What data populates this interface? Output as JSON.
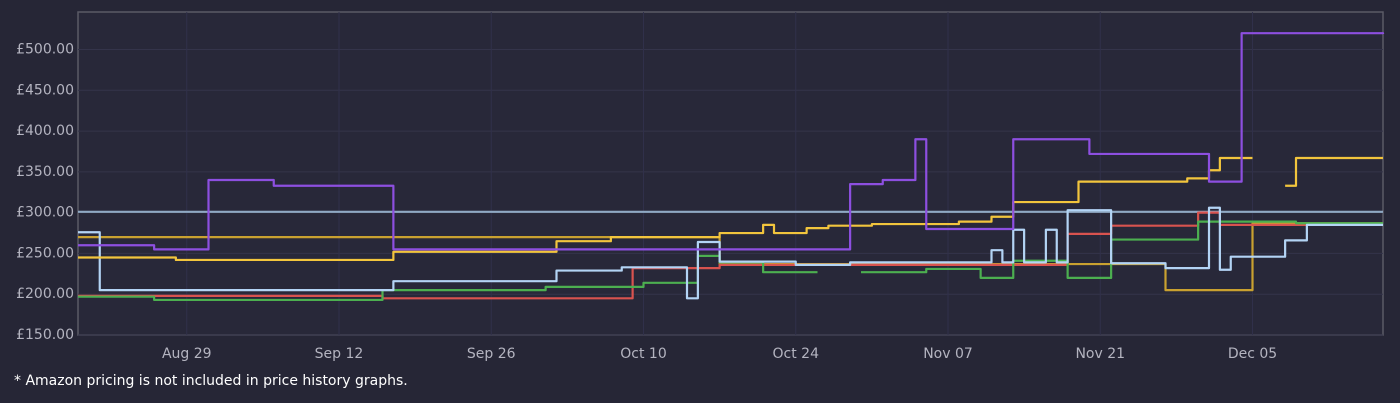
{
  "chart_data": {
    "type": "step",
    "footnote": "* Amazon pricing is not included in price history graphs.",
    "xlim": [
      "Aug 19",
      "Dec 17"
    ],
    "xticks": [
      "Aug 29",
      "Sep 12",
      "Sep 26",
      "Oct 10",
      "Oct 24",
      "Nov 07",
      "Nov 21",
      "Dec 05"
    ],
    "ylim": [
      150,
      546
    ],
    "yticks": [
      {
        "value": 150,
        "label": "£150.00"
      },
      {
        "value": 200,
        "label": "£200.00"
      },
      {
        "value": 250,
        "label": "£250.00"
      },
      {
        "value": 300,
        "label": "£300.00"
      },
      {
        "value": 350,
        "label": "£350.00"
      },
      {
        "value": 400,
        "label": "£400.00"
      },
      {
        "value": 450,
        "label": "£450.00"
      },
      {
        "value": 500,
        "label": "£500.00"
      }
    ],
    "grid": true,
    "series": [
      {
        "color": "#8fa9c4",
        "x": [
          "Aug 19",
          "Dec 17"
        ],
        "values": [
          301,
          301
        ]
      },
      {
        "color": "#c9a130",
        "x": [
          "Aug 19",
          "Oct 17",
          "Nov 27",
          "Dec 05",
          "Dec 17"
        ],
        "values": [
          270,
          237,
          205,
          287,
          287
        ]
      },
      {
        "color": "#d9534f",
        "x": [
          "Aug 19",
          "Sep 16",
          "Oct 09",
          "Oct 17",
          "Nov 18",
          "Nov 22",
          "Nov 30",
          "Dec 02",
          "Dec 17"
        ],
        "values": [
          198,
          195,
          232,
          236,
          274,
          284,
          300,
          285,
          285
        ]
      },
      {
        "color": "#4caf50",
        "x": [
          "Aug 19",
          "Aug 26",
          "Sep 16",
          "Oct 01",
          "Oct 10",
          "Oct 15",
          "Oct 17",
          "Oct 21",
          "Oct 26",
          "Oct 30",
          "Nov 05",
          "Nov 10",
          "Nov 13",
          "Nov 18",
          "Nov 22",
          "Nov 30",
          "Dec 09",
          "Dec 17"
        ],
        "values": [
          197,
          193,
          205,
          209,
          214,
          247,
          239,
          227,
          null,
          227,
          231,
          220,
          241,
          220,
          267,
          289,
          287,
          287
        ]
      },
      {
        "color": "#b3d4f5",
        "x": [
          "Aug 19",
          "Aug 21",
          "Sep 17",
          "Oct 02",
          "Oct 08",
          "Oct 14",
          "Oct 15",
          "Oct 17",
          "Oct 24",
          "Oct 29",
          "Nov 11",
          "Nov 12",
          "Nov 13",
          "Nov 14",
          "Nov 16",
          "Nov 17",
          "Nov 18",
          "Nov 22",
          "Nov 27",
          "Dec 01",
          "Dec 02",
          "Dec 03",
          "Dec 08",
          "Dec 10",
          "Dec 17"
        ],
        "values": [
          276,
          205,
          216,
          229,
          233,
          195,
          264,
          240,
          236,
          239,
          254,
          239,
          279,
          239,
          279,
          239,
          303,
          238,
          232,
          306,
          230,
          246,
          266,
          285,
          285
        ]
      },
      {
        "color": "#f2c53d",
        "x": [
          "Aug 19",
          "Aug 28",
          "Sep 17",
          "Oct 02",
          "Oct 07",
          "Oct 17",
          "Oct 21",
          "Oct 22",
          "Oct 25",
          "Oct 27",
          "Oct 31",
          "Nov 08",
          "Nov 11",
          "Nov 13",
          "Nov 19",
          "Nov 29",
          "Dec 01",
          "Dec 02",
          "Dec 05",
          "Dec 08",
          "Dec 09",
          "Dec 17"
        ],
        "values": [
          245,
          242,
          252,
          265,
          270,
          275,
          285,
          275,
          281,
          284,
          286,
          289,
          295,
          313,
          338,
          342,
          352,
          367,
          null,
          333,
          367,
          367
        ]
      },
      {
        "color": "#8d4fe0",
        "x": [
          "Aug 19",
          "Aug 26",
          "Aug 31",
          "Sep 06",
          "Sep 17",
          "Oct 29",
          "Nov 01",
          "Nov 04",
          "Nov 05",
          "Nov 13",
          "Nov 20",
          "Dec 01",
          "Dec 04",
          "Dec 17"
        ],
        "values": [
          260,
          255,
          340,
          333,
          255,
          335,
          340,
          390,
          280,
          390,
          372,
          338,
          520,
          519
        ]
      }
    ]
  }
}
